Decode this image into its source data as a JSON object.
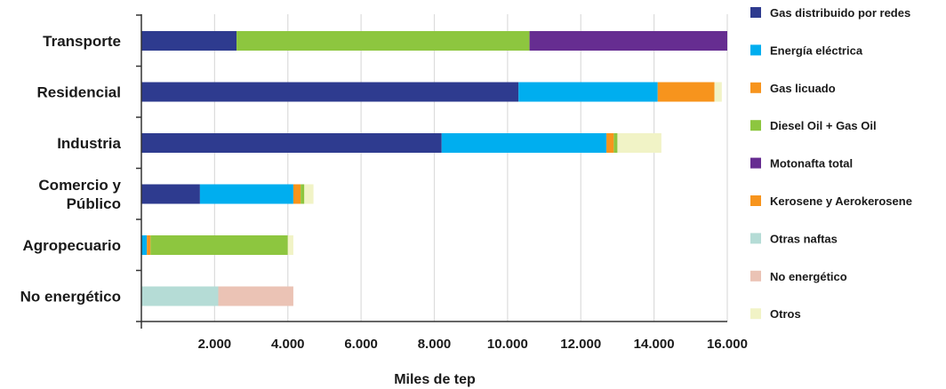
{
  "chart_data": {
    "type": "bar",
    "orientation": "horizontal",
    "stacked": true,
    "title": "",
    "xlabel": "Miles de tep",
    "ylabel": "",
    "xlim": [
      0,
      16000
    ],
    "x_ticks": [
      2000,
      4000,
      6000,
      8000,
      10000,
      12000,
      14000,
      16000
    ],
    "x_tick_labels": [
      "2.000",
      "4.000",
      "6.000",
      "8.000",
      "10.000",
      "12.000",
      "14.000",
      "16.000"
    ],
    "grid": "vertical",
    "legend_position": "right",
    "categories": [
      "Transporte",
      "Residencial",
      "Industria",
      "Comercio y Público",
      "Agropecuario",
      "No energético"
    ],
    "category_label_lines": [
      [
        "Transporte"
      ],
      [
        "Residencial"
      ],
      [
        "Industria"
      ],
      [
        "Comercio y",
        "Público"
      ],
      [
        "Agropecuario"
      ],
      [
        "No energético"
      ]
    ],
    "series": [
      {
        "name": "Gas distribuido por redes",
        "color": "#2e3b8f",
        "values": [
          2600,
          10300,
          8200,
          1600,
          0,
          0
        ]
      },
      {
        "name": "Energía eléctrica",
        "color": "#00aeef",
        "values": [
          0,
          3800,
          4500,
          2550,
          150,
          0
        ]
      },
      {
        "name": "Gas licuado",
        "color": "#f7941d",
        "values": [
          0,
          1550,
          200,
          200,
          100,
          0
        ]
      },
      {
        "name": "Diesel Oil + Gas Oil",
        "color": "#8dc63f",
        "values": [
          8000,
          0,
          100,
          100,
          3750,
          0
        ]
      },
      {
        "name": "Motonafta total",
        "color": "#662d91",
        "values": [
          5400,
          0,
          0,
          0,
          0,
          0
        ]
      },
      {
        "name": "Kerosene y Aerokerosene",
        "color": "#f7941d",
        "values": [
          0,
          0,
          0,
          0,
          0,
          0
        ]
      },
      {
        "name": "Otras naftas",
        "color": "#b5dcd6",
        "values": [
          0,
          0,
          0,
          0,
          0,
          2100
        ]
      },
      {
        "name": "No energético",
        "color": "#ebc3b5",
        "values": [
          0,
          0,
          0,
          0,
          0,
          2050
        ]
      },
      {
        "name": "Otros",
        "color": "#f1f3c6",
        "values": [
          0,
          200,
          1200,
          250,
          150,
          0
        ]
      }
    ]
  }
}
